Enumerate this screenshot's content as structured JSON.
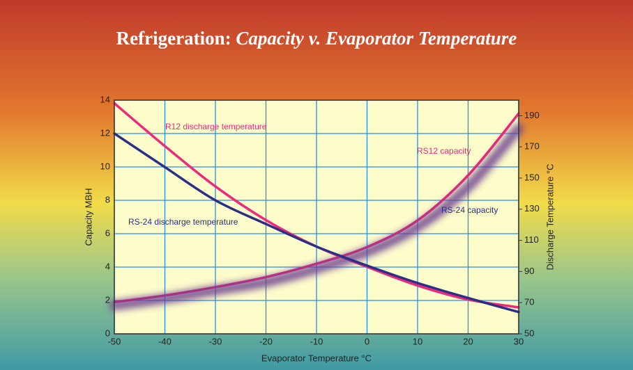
{
  "chart_data": {
    "type": "line",
    "title": [
      "Refrigeration:",
      "Capacity v. Evaporator Temperature"
    ],
    "x_label": "Evaporator Temperature °C",
    "y_label": "Capacity MBH",
    "y2_label": "Discharge Temperature °C",
    "x": [
      -50,
      -40,
      -30,
      -20,
      -10,
      0,
      10,
      20,
      30
    ],
    "xlim": [
      -50,
      30
    ],
    "xticks": [
      -50,
      -40,
      -30,
      -20,
      -10,
      0,
      10,
      20,
      30
    ],
    "ylim": [
      0,
      14
    ],
    "yticks": [
      0,
      2,
      4,
      6,
      8,
      10,
      12,
      14
    ],
    "y2lim": [
      50,
      200
    ],
    "y2ticks": [
      50,
      70,
      90,
      110,
      130,
      150,
      170,
      190
    ],
    "grid": true,
    "series": [
      {
        "name": "R12 discharge temperature",
        "color": "#f0287a",
        "axis": "y2",
        "values": [
          198,
          170.5,
          144.6,
          123,
          106,
          93,
          81,
          72,
          67
        ]
      },
      {
        "name": "RS12 capacity",
        "color": "#f0287a",
        "values": [
          1.9,
          2.3,
          2.8,
          3.4,
          4.2,
          5.2,
          6.8,
          9.5,
          13.2
        ]
      },
      {
        "name": "RS-24 capacity",
        "color": "#6a3d8f",
        "values": [
          1.7,
          2.1,
          2.6,
          3.1,
          3.9,
          4.9,
          6.4,
          8.8,
          12.3
        ]
      },
      {
        "name": "RS-24 discharge temperature",
        "color": "#2b2f86",
        "axis": "y2",
        "values": [
          178.6,
          157,
          135.7,
          120.5,
          106,
          93.8,
          82.6,
          73,
          64
        ]
      }
    ]
  }
}
